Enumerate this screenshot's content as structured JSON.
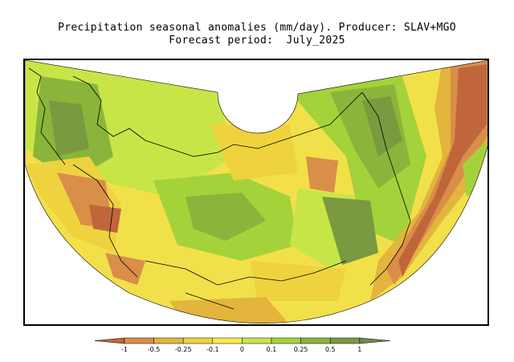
{
  "title_line1": "Precipitation seasonal anomalies (mm/day). Producer: SLAV+MGO",
  "title_line2": "Forecast period:  July_2025",
  "colorbar": {
    "labels": [
      "-1",
      "-0.5",
      "-0.25",
      "-0.1",
      "0",
      "0.1",
      "0.25",
      "0.5",
      "1"
    ],
    "colors": [
      "#c0663a",
      "#d98e4a",
      "#e3b53c",
      "#efd33e",
      "#f7ea4a",
      "#c8e548",
      "#a4d23a",
      "#8ab53a",
      "#7a9a40",
      "#6e8a48"
    ]
  },
  "map": {
    "colors": {
      "strong_dry": "#c0663a",
      "dry": "#d98e4a",
      "mild_dry": "#e3b53c",
      "slight_dry": "#efd33e",
      "neutral": "#f2e04a",
      "slight_wet": "#c8e548",
      "wet": "#a4d23a",
      "more_wet": "#8ab53a",
      "strong_wet": "#7a9a40"
    }
  }
}
